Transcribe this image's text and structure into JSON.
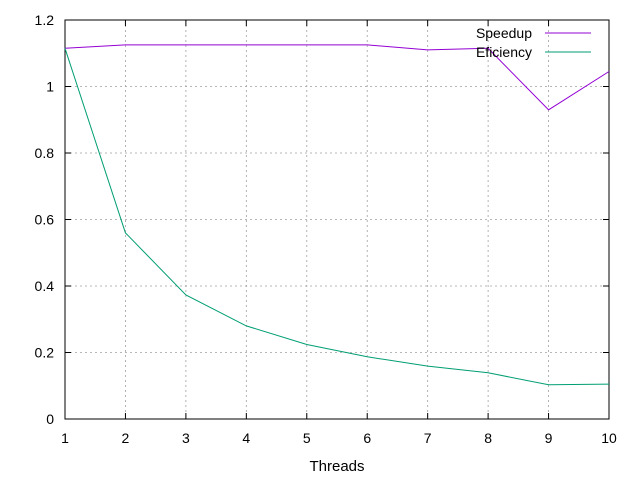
{
  "chart_data": {
    "type": "line",
    "title": "",
    "xlabel": "Threads",
    "ylabel": "",
    "xlim": [
      1,
      10
    ],
    "ylim": [
      0,
      1.2
    ],
    "xticks": [
      1,
      2,
      3,
      4,
      5,
      6,
      7,
      8,
      9,
      10
    ],
    "yticks": [
      0,
      0.2,
      0.4,
      0.6,
      0.8,
      1,
      1.2
    ],
    "xtick_labels": [
      "1",
      "2",
      "3",
      "4",
      "5",
      "6",
      "7",
      "8",
      "9",
      "10"
    ],
    "ytick_labels": [
      "0",
      "0.2",
      "0.4",
      "0.6",
      "0.8",
      "1",
      "1.2"
    ],
    "grid": true,
    "legend_position": "top-right",
    "x": [
      1,
      2,
      3,
      4,
      5,
      6,
      7,
      8,
      9,
      10
    ],
    "series": [
      {
        "name": "Speedup",
        "color": "#9400d3",
        "values": [
          1.115,
          1.125,
          1.125,
          1.125,
          1.125,
          1.125,
          1.11,
          1.115,
          0.93,
          1.045
        ]
      },
      {
        "name": "Eficiency",
        "color": "#009e73",
        "values": [
          1.115,
          0.56,
          0.373,
          0.28,
          0.224,
          0.187,
          0.159,
          0.139,
          0.103,
          0.105
        ]
      }
    ]
  }
}
